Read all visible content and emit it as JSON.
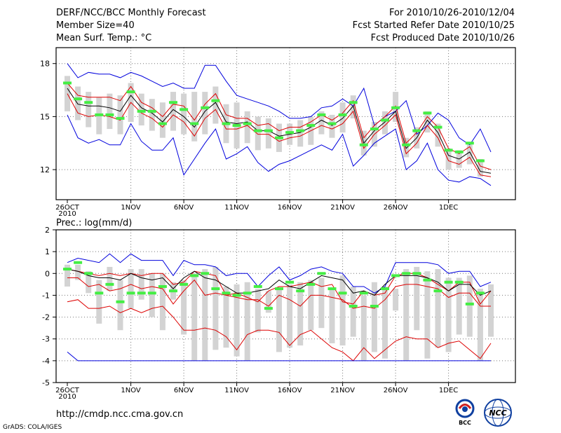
{
  "header": {
    "title": "DERF/NCC/BCC Monthly Forecast",
    "member_size": "Member Size=40",
    "variable": "Mean Surf. Temp.: °C",
    "period": "For 2010/10/26-2010/12/04",
    "started": "Fcst Started Refer Date 2010/10/25",
    "produced": "Fcst Produced Date 2010/10/26"
  },
  "footer": {
    "url": "http://cmdp.ncc.cma.gov.cn",
    "credit": "GrADS: COLA/IGES",
    "logo_left_text": "BCC",
    "logo_right_text": "NCC"
  },
  "colors": {
    "ensemble_bar": "#d3d3d3",
    "member_mark": "#44ee44",
    "envelope": "#0000dd",
    "quartile": "#dd0000",
    "mean": "#000000"
  },
  "chart_data": [
    {
      "type": "line",
      "title": "Mean Surf. Temp.: °C",
      "days": 40,
      "ylim": [
        10.3,
        18.9
      ],
      "yticks": [
        12,
        15,
        18
      ],
      "xticks": [
        {
          "day": 0,
          "label": "26OCT",
          "sub": "2010"
        },
        {
          "day": 6,
          "label": "1NOV"
        },
        {
          "day": 11,
          "label": "6NOV"
        },
        {
          "day": 16,
          "label": "11NOV"
        },
        {
          "day": 21,
          "label": "16NOV"
        },
        {
          "day": 26,
          "label": "21NOV"
        },
        {
          "day": 31,
          "label": "26NOV"
        },
        {
          "day": 36,
          "label": "1DEC"
        }
      ],
      "grid": true,
      "series": [
        {
          "name": "max",
          "role": "envelope",
          "values": [
            18.0,
            17.2,
            17.5,
            17.4,
            17.4,
            17.2,
            17.5,
            17.3,
            17.0,
            16.7,
            16.9,
            16.6,
            16.6,
            17.9,
            17.9,
            17.0,
            16.2,
            16.0,
            15.8,
            15.6,
            15.3,
            14.9,
            14.9,
            15.0,
            15.5,
            15.6,
            16.0,
            15.6,
            16.6,
            14.5,
            15.0,
            15.3,
            15.9,
            14.0,
            14.5,
            15.2,
            14.8,
            13.8,
            13.4,
            14.3,
            13.0
          ]
        },
        {
          "name": "p75",
          "role": "quartile",
          "values": [
            16.9,
            16.2,
            16.1,
            16.1,
            16.1,
            15.9,
            16.7,
            15.8,
            15.5,
            15.0,
            15.7,
            15.6,
            14.8,
            15.7,
            16.3,
            15.1,
            14.9,
            14.9,
            14.5,
            14.6,
            14.2,
            14.4,
            14.4,
            14.7,
            15.1,
            14.8,
            15.2,
            15.9,
            13.8,
            14.5,
            15.0,
            15.6,
            13.5,
            14.1,
            15.0,
            14.4,
            13.2,
            12.9,
            13.3,
            12.2,
            12.0
          ]
        },
        {
          "name": "mean",
          "role": "mean",
          "values": [
            16.6,
            15.7,
            15.6,
            15.6,
            15.5,
            15.3,
            16.2,
            15.5,
            15.2,
            14.7,
            15.4,
            15.0,
            14.4,
            15.3,
            15.8,
            14.7,
            14.6,
            14.7,
            14.2,
            14.2,
            13.9,
            14.0,
            14.1,
            14.4,
            14.8,
            14.5,
            14.9,
            15.6,
            13.5,
            14.2,
            14.7,
            15.3,
            13.2,
            13.8,
            14.8,
            14.1,
            12.8,
            12.6,
            13.0,
            11.9,
            11.8
          ]
        },
        {
          "name": "p25",
          "role": "quartile",
          "values": [
            16.3,
            15.2,
            15.0,
            15.1,
            15.0,
            14.8,
            15.8,
            15.2,
            14.9,
            14.4,
            15.1,
            14.7,
            13.9,
            14.9,
            15.4,
            14.3,
            14.3,
            14.5,
            14.0,
            14.0,
            13.6,
            13.8,
            13.9,
            14.2,
            14.5,
            14.3,
            14.6,
            15.3,
            13.2,
            14.0,
            14.5,
            15.1,
            12.9,
            13.5,
            14.5,
            13.8,
            12.5,
            12.3,
            12.7,
            11.7,
            11.6
          ]
        },
        {
          "name": "min",
          "role": "envelope",
          "values": [
            15.1,
            13.8,
            13.5,
            13.7,
            13.4,
            13.4,
            14.6,
            13.6,
            13.1,
            13.1,
            13.8,
            11.7,
            12.6,
            13.5,
            14.3,
            12.6,
            12.9,
            13.3,
            12.4,
            11.9,
            12.3,
            12.5,
            12.8,
            13.1,
            13.4,
            13.1,
            14.0,
            12.2,
            12.8,
            13.5,
            13.9,
            14.3,
            12.0,
            12.5,
            13.5,
            12.0,
            11.4,
            11.3,
            11.6,
            11.5,
            11.1
          ]
        }
      ],
      "boxes": [
        [
          15.3,
          17.3
        ],
        [
          14.8,
          16.7
        ],
        [
          14.4,
          16.4
        ],
        [
          14.0,
          16.1
        ],
        [
          14.3,
          16.3
        ],
        [
          14.0,
          16.2
        ],
        [
          14.7,
          16.9
        ],
        [
          14.5,
          16.3
        ],
        [
          14.2,
          16.0
        ],
        [
          13.8,
          15.8
        ],
        [
          14.2,
          16.4
        ],
        [
          14.0,
          16.3
        ],
        [
          13.6,
          16.4
        ],
        [
          14.0,
          16.4
        ],
        [
          14.6,
          16.7
        ],
        [
          13.5,
          15.7
        ],
        [
          13.2,
          15.8
        ],
        [
          13.5,
          15.3
        ],
        [
          13.1,
          15.0
        ],
        [
          13.2,
          14.9
        ],
        [
          13.0,
          14.6
        ],
        [
          13.4,
          14.6
        ],
        [
          13.3,
          14.8
        ],
        [
          13.4,
          15.0
        ],
        [
          14.0,
          15.3
        ],
        [
          13.8,
          15.1
        ],
        [
          14.1,
          15.8
        ],
        [
          14.9,
          16.2
        ],
        [
          12.8,
          14.2
        ],
        [
          13.3,
          14.7
        ],
        [
          14.0,
          15.3
        ],
        [
          14.7,
          16.4
        ],
        [
          12.7,
          13.8
        ],
        [
          13.2,
          14.4
        ],
        [
          14.1,
          15.3
        ],
        [
          13.3,
          14.6
        ],
        [
          12.0,
          13.2
        ],
        [
          12.1,
          13.1
        ],
        [
          12.3,
          13.5
        ],
        [
          11.6,
          12.6
        ],
        null
      ],
      "markers": [
        16.9,
        16.0,
        15.8,
        15.1,
        15.1,
        14.9,
        16.4,
        15.3,
        15.3,
        14.6,
        15.8,
        15.4,
        14.6,
        15.5,
        15.9,
        14.6,
        14.5,
        14.6,
        14.2,
        14.2,
        13.8,
        14.1,
        14.2,
        14.5,
        15.1,
        14.6,
        15.1,
        15.8,
        13.4,
        14.3,
        14.8,
        15.5,
        13.4,
        14.2,
        15.2,
        14.4,
        13.1,
        13.0,
        13.5,
        12.5,
        null
      ]
    },
    {
      "type": "line",
      "title": "Prec.: log(mm/d)",
      "days": 40,
      "ylim": [
        -5,
        2
      ],
      "yticks": [
        -5,
        -4,
        -3,
        -2,
        -1,
        0,
        1,
        2
      ],
      "xticks": [
        {
          "day": 0,
          "label": "26OCT",
          "sub": "2010"
        },
        {
          "day": 6,
          "label": "1NOV"
        },
        {
          "day": 11,
          "label": "6NOV"
        },
        {
          "day": 16,
          "label": "11NOV"
        },
        {
          "day": 21,
          "label": "16NOV"
        },
        {
          "day": 26,
          "label": "21NOV"
        },
        {
          "day": 31,
          "label": "26NOV"
        },
        {
          "day": 36,
          "label": "1DEC"
        }
      ],
      "grid": true,
      "series": [
        {
          "name": "max",
          "role": "envelope",
          "values": [
            0.5,
            0.7,
            0.6,
            0.5,
            0.9,
            0.5,
            0.9,
            0.6,
            0.6,
            0.6,
            -0.1,
            0.6,
            0.4,
            0.4,
            0.3,
            -0.1,
            0.0,
            0.0,
            -0.6,
            -0.1,
            0.3,
            -0.3,
            -0.1,
            0.2,
            0.3,
            0.1,
            0.0,
            -0.6,
            -0.6,
            -0.9,
            -0.6,
            0.5,
            0.5,
            0.5,
            0.5,
            0.4,
            0.0,
            0.1,
            0.1,
            -0.6,
            -0.4
          ]
        },
        {
          "name": "p75",
          "role": "quartile",
          "values": [
            0.2,
            0.1,
            0.0,
            -0.1,
            0.0,
            -0.1,
            0.0,
            -0.1,
            0.0,
            0.0,
            -0.5,
            -0.4,
            0.1,
            0.0,
            -0.1,
            -1.0,
            -0.9,
            -1.1,
            -1.3,
            -0.8,
            -0.6,
            -0.6,
            -0.5,
            -0.4,
            -0.6,
            -0.5,
            -1.3,
            -1.4,
            -0.8,
            -1.0,
            -0.9,
            -0.1,
            0.0,
            0.0,
            -0.2,
            -0.5,
            -0.8,
            -0.4,
            -0.4,
            -1.4,
            -0.8
          ]
        },
        {
          "name": "mean",
          "role": "mean",
          "values": [
            0.2,
            0.1,
            -0.1,
            -0.2,
            -0.2,
            -0.3,
            0.0,
            -0.2,
            -0.3,
            -0.2,
            -0.7,
            -0.2,
            0.1,
            -0.2,
            -0.3,
            -0.6,
            -0.9,
            -0.9,
            -0.8,
            -0.7,
            -0.3,
            -0.6,
            -0.7,
            -0.4,
            -0.1,
            -0.2,
            -0.3,
            -0.9,
            -0.8,
            -1.0,
            -0.5,
            -0.1,
            -0.1,
            -0.1,
            -0.2,
            -0.4,
            -0.8,
            -0.5,
            -0.5,
            -1.0,
            -0.8
          ]
        },
        {
          "name": "p25",
          "role": "quartile",
          "values": [
            -0.2,
            -0.2,
            -0.6,
            -0.5,
            -0.8,
            -0.7,
            -0.5,
            -0.7,
            -0.6,
            -0.7,
            -1.4,
            -0.8,
            -0.3,
            -1.0,
            -0.9,
            -1.0,
            -1.1,
            -1.2,
            -1.2,
            -1.5,
            -1.0,
            -1.2,
            -1.5,
            -1.0,
            -1.0,
            -1.1,
            -1.2,
            -1.6,
            -1.5,
            -1.6,
            -1.2,
            -0.6,
            -0.5,
            -0.5,
            -0.6,
            -0.7,
            -1.1,
            -0.9,
            -0.9,
            -1.5,
            -1.5
          ]
        },
        {
          "name": "p10",
          "role": "quartile",
          "values": [
            -1.3,
            -1.2,
            -1.6,
            -1.6,
            -1.5,
            -1.8,
            -1.6,
            -1.8,
            -1.6,
            -1.5,
            -2.0,
            -2.6,
            -2.6,
            -2.5,
            -2.6,
            -2.9,
            -3.5,
            -2.8,
            -2.6,
            -2.6,
            -2.7,
            -3.3,
            -2.8,
            -2.6,
            -3.0,
            -3.4,
            -3.6,
            -4.0,
            -3.4,
            -3.9,
            -3.5,
            -3.1,
            -2.9,
            -3.0,
            -3.0,
            -3.4,
            -3.2,
            -3.1,
            -3.5,
            -3.9,
            -3.2
          ]
        },
        {
          "name": "min",
          "role": "envelope",
          "values": [
            -3.6,
            -4.0,
            -4.0,
            -4.0,
            -4.0,
            -4.0,
            -4.0,
            -4.0,
            -4.0,
            -4.0,
            -4.0,
            -4.0,
            -4.0,
            -4.0,
            -4.0,
            -4.0,
            -4.0,
            -4.0,
            -4.0,
            -4.0,
            -4.0,
            -4.0,
            -4.0,
            -4.0,
            -4.0,
            -4.0,
            -4.0,
            -4.0,
            -4.0,
            -4.0,
            -4.0,
            -4.0,
            -4.0,
            -4.0,
            -4.0,
            -4.0,
            -4.0,
            -4.0,
            -4.0,
            -4.0,
            -4.0
          ]
        }
      ],
      "boxes": [
        [
          -0.6,
          0.4
        ],
        [
          -0.3,
          0.4
        ],
        [
          -0.9,
          0.1
        ],
        [
          -2.3,
          -0.3
        ],
        [
          -0.8,
          0.3
        ],
        [
          -2.6,
          -0.3
        ],
        [
          -1.6,
          0.2
        ],
        [
          -1.2,
          0.2
        ],
        [
          -2.0,
          0.0
        ],
        [
          -2.6,
          0.0
        ],
        [
          -1.2,
          -0.4
        ],
        [
          -2.8,
          -0.3
        ],
        [
          -4.0,
          0.0
        ],
        [
          -4.0,
          0.2
        ],
        [
          -3.5,
          0.3
        ],
        [
          -3.4,
          -0.6
        ],
        [
          -3.8,
          -0.5
        ],
        [
          -4.0,
          -0.4
        ],
        [
          -2.7,
          -0.7
        ],
        [
          -1.8,
          -0.8
        ],
        [
          -3.6,
          -0.7
        ],
        [
          -3.4,
          -0.5
        ],
        [
          -3.3,
          -0.4
        ],
        [
          -2.6,
          -0.3
        ],
        [
          -2.5,
          -0.2
        ],
        [
          -3.2,
          -0.7
        ],
        [
          -3.3,
          -0.1
        ],
        [
          -2.9,
          -0.6
        ],
        [
          -4.0,
          -1.0
        ],
        [
          -3.6,
          -0.4
        ],
        [
          -3.9,
          -0.6
        ],
        [
          -1.7,
          -0.7
        ],
        [
          -4.0,
          0.2
        ],
        [
          -2.6,
          0.3
        ],
        [
          -3.9,
          0.1
        ],
        [
          -3.4,
          0.2
        ],
        [
          -3.6,
          -0.2
        ],
        [
          -2.8,
          -0.2
        ],
        [
          -2.9,
          -0.1
        ],
        [
          -4.0,
          -0.7
        ],
        [
          -2.9,
          -0.5
        ]
      ],
      "markers": [
        0.2,
        0.5,
        0.0,
        -0.9,
        -0.5,
        -1.3,
        -0.9,
        -0.9,
        -0.9,
        -0.6,
        -0.8,
        -0.5,
        -0.1,
        0.0,
        -0.7,
        -0.9,
        -1.0,
        -0.9,
        -0.6,
        -1.6,
        -0.7,
        -0.4,
        -0.8,
        -0.5,
        0.0,
        -0.7,
        -0.9,
        -1.5,
        -0.9,
        -1.5,
        -0.7,
        -0.1,
        0.0,
        0.0,
        -0.3,
        -0.8,
        -0.4,
        -0.4,
        -1.4,
        -0.9,
        null
      ]
    }
  ]
}
